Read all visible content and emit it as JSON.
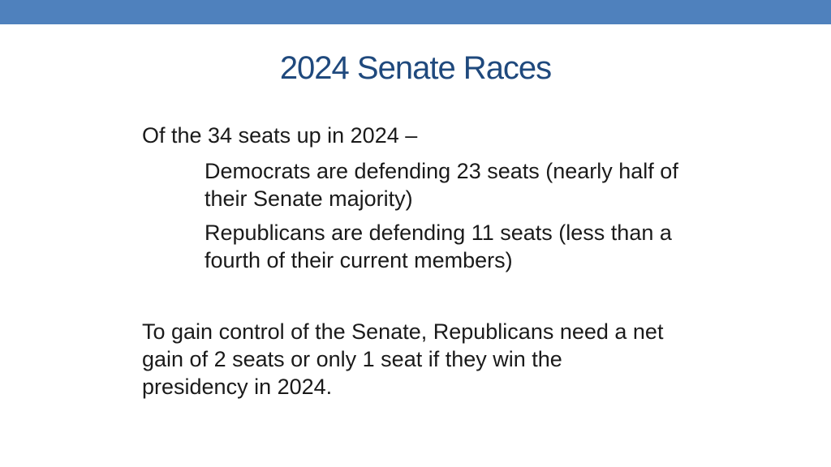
{
  "colors": {
    "top_band": "#4f81bd",
    "title": "#1f497d"
  },
  "title": "2024 Senate Races",
  "intro": "Of the 34 seats up in 2024 –",
  "points": [
    "Democrats are defending 23 seats (nearly half of their Senate majority)",
    "Republicans are defending 11 seats (less than a fourth of their current members)"
  ],
  "conclusion": "To gain control of the Senate, Republicans need a net gain of 2 seats or only 1 seat if they win the presidency in 2024."
}
